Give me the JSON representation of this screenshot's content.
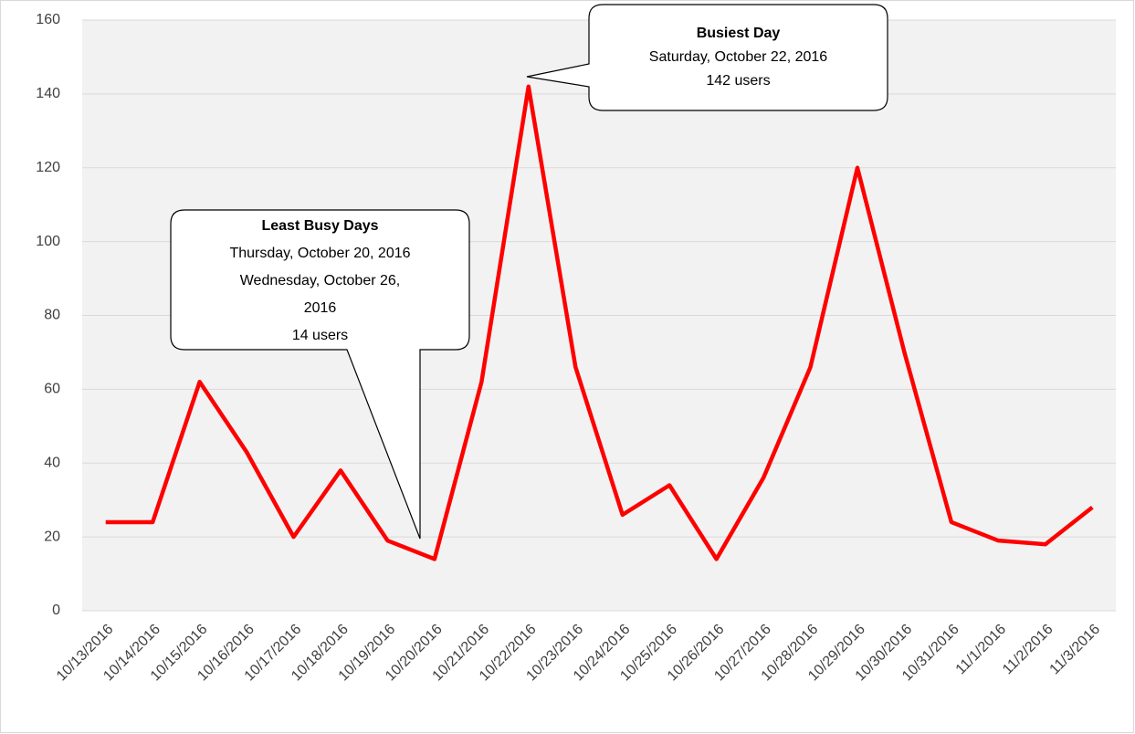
{
  "chart_data": {
    "type": "line",
    "categories": [
      "10/13/2016",
      "10/14/2016",
      "10/15/2016",
      "10/16/2016",
      "10/17/2016",
      "10/18/2016",
      "10/19/2016",
      "10/20/2016",
      "10/21/2016",
      "10/22/2016",
      "10/23/2016",
      "10/24/2016",
      "10/25/2016",
      "10/26/2016",
      "10/27/2016",
      "10/28/2016",
      "10/29/2016",
      "10/30/2016",
      "10/31/2016",
      "11/1/2016",
      "11/2/2016",
      "11/3/2016"
    ],
    "series": [
      {
        "name": "users",
        "color": "#ff0000",
        "values": [
          24,
          24,
          62,
          43,
          20,
          38,
          19,
          14,
          62,
          142,
          66,
          26,
          34,
          14,
          36,
          66,
          120,
          70,
          24,
          19,
          18,
          28
        ]
      }
    ],
    "ylim": [
      0,
      160
    ],
    "yticks": [
      0,
      20,
      40,
      60,
      80,
      100,
      120,
      140,
      160
    ],
    "grid": true,
    "annotations": [
      {
        "lines": [
          "Busiest Day",
          "Saturday, October 22, 2016",
          "142 users"
        ]
      },
      {
        "lines": [
          "Least Busy Days",
          "Thursday, October 20, 2016",
          "Wednesday, October 26,",
          "2016",
          "14 users"
        ]
      }
    ]
  }
}
